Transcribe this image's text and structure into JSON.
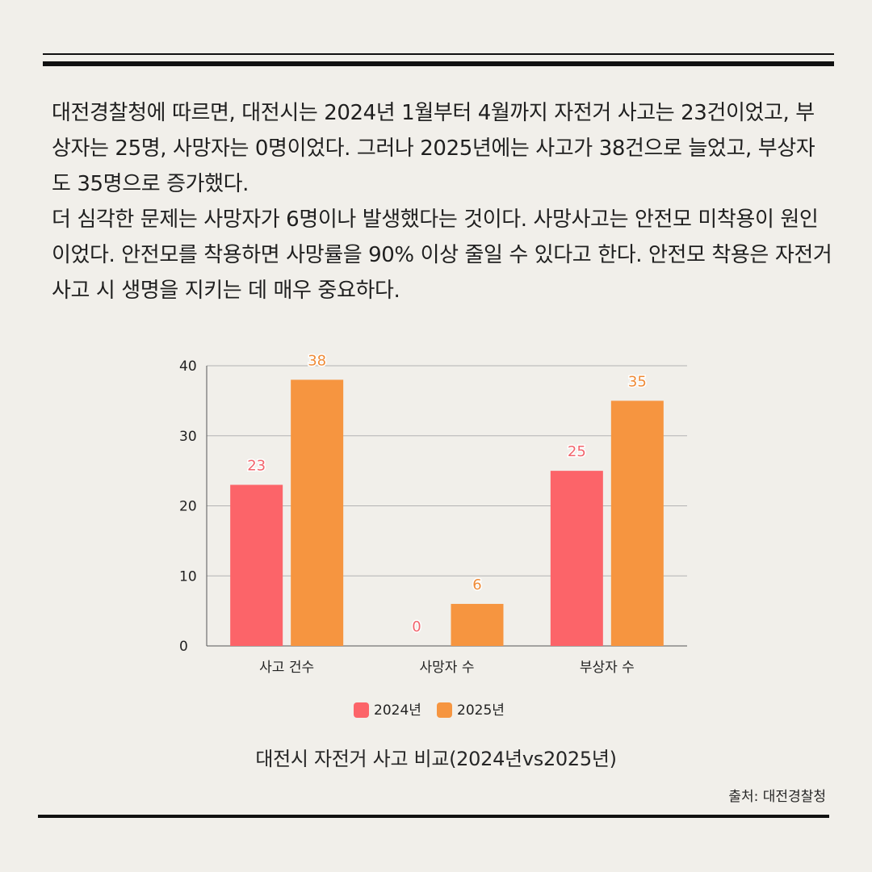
{
  "paragraphs": [
    "대전경찰청에 따르면, 대전시는 2024년 1월부터 4월까지 자전거 사고는 23건이었고, 부상자는 25명, 사망자는 0명이었다. 그러나 2025년에는 사고가 38건으로 늘었고, 부상자도 35명으로 증가했다.",
    "더 심각한 문제는 사망자가 6명이나 발생했다는 것이다. 사망사고는 안전모 미착용이 원인이었다. 안전모를 착용하면 사망률을 90% 이상 줄일 수 있다고 한다. 안전모 착용은 자전거 사고 시 생명을 지키는 데 매우 중요하다."
  ],
  "source": "출처: 대전경찰청",
  "chart_data": {
    "type": "bar",
    "title": "대전시 자전거 사고 비교(2024년vs2025년)",
    "categories": [
      "사고 건수",
      "사망자 수",
      "부상자 수"
    ],
    "series": [
      {
        "name": "2024년",
        "values": [
          23,
          0,
          25
        ],
        "color": "#fc6469",
        "label_color": "#f2656d"
      },
      {
        "name": "2025년",
        "values": [
          38,
          6,
          35
        ],
        "color": "#f69540",
        "label_color": "#ef8b37"
      }
    ],
    "ylim": [
      0,
      40
    ],
    "yticks": [
      0,
      10,
      20,
      30,
      40
    ],
    "grid": true,
    "legend": "bottom-center",
    "xlabel": "",
    "ylabel": ""
  }
}
